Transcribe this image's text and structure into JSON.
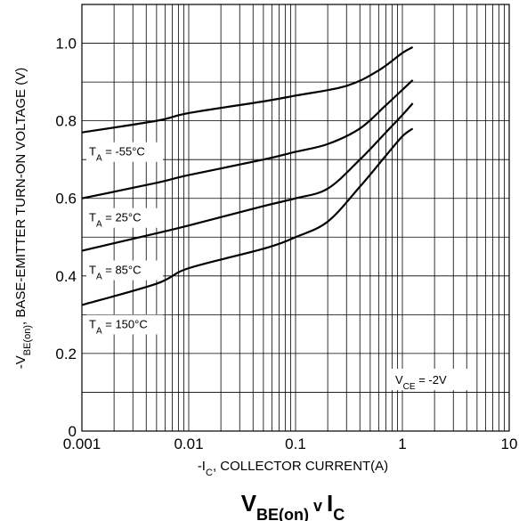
{
  "chart_data": {
    "type": "line",
    "title": "V",
    "title_sub": "BE(on)",
    "title_mid": " v ",
    "title_main2": "I",
    "title_sub2": "C",
    "xlabel_pre": "-I",
    "xlabel_sub": "C",
    "xlabel_post": ", COLLECTOR CURRENT(A)",
    "ylabel_pre": "-V",
    "ylabel_sub": "BE(on)",
    "ylabel_post": ", BASE-EMITTER TURN-ON VOLTAGE (V)",
    "x_scale": "log",
    "xlim": [
      0.001,
      10
    ],
    "ylim": [
      0,
      1.1
    ],
    "x_ticks": [
      "0.001",
      "0.01",
      "0.1",
      "1",
      "10"
    ],
    "y_ticks": [
      "0",
      "0.2",
      "0.4",
      "0.6",
      "0.8",
      "1.0"
    ],
    "grid": true,
    "annotation_pre": "V",
    "annotation_sub": "CE",
    "annotation_post": " = -2V",
    "series": [
      {
        "label_pre": "T",
        "label_sub": "A",
        "label_post": " = -55°C",
        "x": [
          0.001,
          0.005,
          0.01,
          0.05,
          0.1,
          0.3,
          0.6,
          1.0,
          1.25
        ],
        "y": [
          0.77,
          0.8,
          0.82,
          0.85,
          0.865,
          0.89,
          0.93,
          0.975,
          0.99
        ]
      },
      {
        "label_pre": "T",
        "label_sub": "A",
        "label_post": " = 25°C",
        "x": [
          0.001,
          0.005,
          0.01,
          0.05,
          0.1,
          0.2,
          0.4,
          0.7,
          1.0,
          1.25
        ],
        "y": [
          0.6,
          0.64,
          0.66,
          0.7,
          0.72,
          0.74,
          0.78,
          0.84,
          0.88,
          0.905
        ]
      },
      {
        "label_pre": "T",
        "label_sub": "A",
        "label_post": " = 85°C",
        "x": [
          0.001,
          0.005,
          0.01,
          0.05,
          0.1,
          0.2,
          0.4,
          0.7,
          1.0,
          1.25
        ],
        "y": [
          0.465,
          0.51,
          0.53,
          0.58,
          0.6,
          0.625,
          0.7,
          0.77,
          0.815,
          0.845
        ]
      },
      {
        "label_pre": "T",
        "label_sub": "A",
        "label_post": " = 150°C",
        "x": [
          0.001,
          0.005,
          0.01,
          0.05,
          0.1,
          0.2,
          0.4,
          0.7,
          1.0,
          1.25
        ],
        "y": [
          0.325,
          0.38,
          0.42,
          0.47,
          0.5,
          0.54,
          0.63,
          0.71,
          0.76,
          0.78
        ]
      }
    ]
  }
}
